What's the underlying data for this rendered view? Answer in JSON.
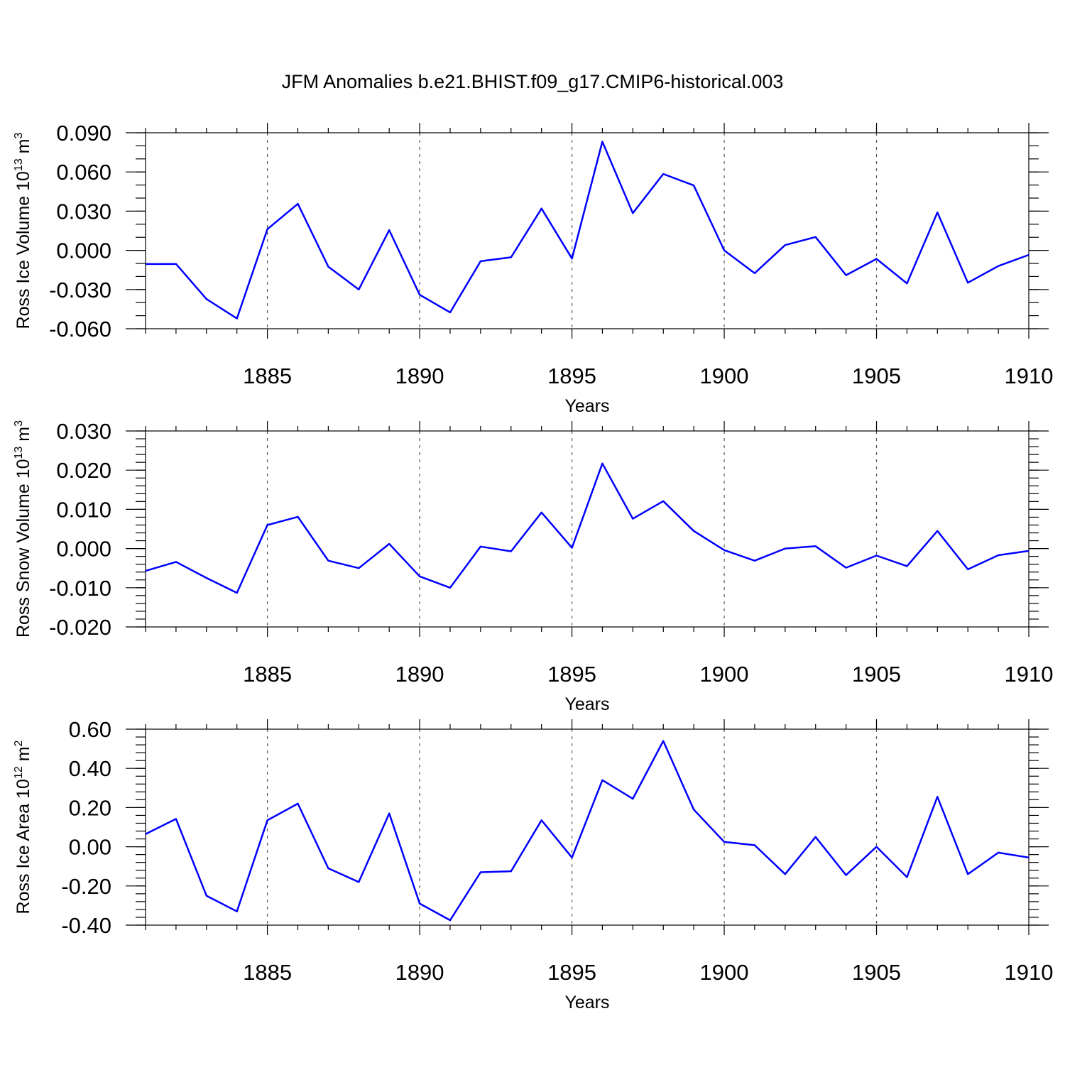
{
  "title": "JFM Anomalies b.e21.BHIST.f09_g17.CMIP6-historical.003",
  "colors": {
    "series": "#0000ff",
    "axis": "#000000",
    "grid": "#555555"
  },
  "chart_data": [
    {
      "type": "line",
      "id": "ice-volume",
      "ylabel_main": "Ross Ice Volume 10",
      "ylabel_exp": "13",
      "ylabel_unit": "m",
      "ylabel_unit_exp": "3",
      "xlabel": "Years",
      "xlim": [
        1881,
        1910
      ],
      "ylim": [
        -0.06,
        0.09
      ],
      "yticks": [
        -0.06,
        -0.03,
        0.0,
        0.03,
        0.06,
        0.09
      ],
      "yticklabels": [
        "-0.060",
        "-0.030",
        "0.000",
        "0.030",
        "0.060",
        "0.090"
      ],
      "yminor": 0.01,
      "xticks": [
        1885,
        1890,
        1895,
        1900,
        1905,
        1910
      ],
      "xticklabels": [
        "1885",
        "1890",
        "1895",
        "1900",
        "1905",
        "1910"
      ],
      "grid_x": [
        1885,
        1890,
        1895,
        1900,
        1905
      ],
      "x": [
        1881,
        1882,
        1883,
        1884,
        1885,
        1886,
        1887,
        1888,
        1889,
        1890,
        1891,
        1892,
        1893,
        1894,
        1895,
        1896,
        1897,
        1898,
        1899,
        1900,
        1901,
        1902,
        1903,
        1904,
        1905,
        1906,
        1907,
        1908,
        1909,
        1910
      ],
      "values": [
        -0.0105,
        -0.0104,
        -0.0373,
        -0.0522,
        0.0162,
        0.0356,
        -0.0125,
        -0.03,
        0.0155,
        -0.034,
        -0.0475,
        -0.0083,
        -0.0053,
        0.032,
        -0.0063,
        0.0832,
        0.0285,
        0.0585,
        0.0497,
        0.0,
        -0.0175,
        0.004,
        0.0102,
        -0.019,
        -0.0065,
        -0.0253,
        0.029,
        -0.0248,
        -0.012,
        -0.0035
      ]
    },
    {
      "type": "line",
      "id": "snow-volume",
      "ylabel_main": "Ross Snow Volume 10",
      "ylabel_exp": "13",
      "ylabel_unit": "m",
      "ylabel_unit_exp": "3",
      "xlabel": "Years",
      "xlim": [
        1881,
        1910
      ],
      "ylim": [
        -0.02,
        0.03
      ],
      "yticks": [
        -0.02,
        -0.01,
        0.0,
        0.01,
        0.02,
        0.03
      ],
      "yticklabels": [
        "-0.020",
        "-0.010",
        "0.000",
        "0.010",
        "0.020",
        "0.030"
      ],
      "yminor": 0.002,
      "xticks": [
        1885,
        1890,
        1895,
        1900,
        1905,
        1910
      ],
      "xticklabels": [
        "1885",
        "1890",
        "1895",
        "1900",
        "1905",
        "1910"
      ],
      "grid_x": [
        1885,
        1890,
        1895,
        1900,
        1905
      ],
      "x": [
        1881,
        1882,
        1883,
        1884,
        1885,
        1886,
        1887,
        1888,
        1889,
        1890,
        1891,
        1892,
        1893,
        1894,
        1895,
        1896,
        1897,
        1898,
        1899,
        1900,
        1901,
        1902,
        1903,
        1904,
        1905,
        1906,
        1907,
        1908,
        1909,
        1910
      ],
      "values": [
        -0.0057,
        -0.0034,
        -0.0075,
        -0.0113,
        0.006,
        0.0081,
        -0.0031,
        -0.005,
        0.0012,
        -0.0071,
        -0.01,
        0.0005,
        -0.0007,
        0.0092,
        0.0002,
        0.0217,
        0.0076,
        0.0121,
        0.0045,
        -0.0004,
        -0.0031,
        0.0,
        0.0006,
        -0.0049,
        -0.0018,
        -0.0045,
        0.0045,
        -0.0053,
        -0.0017,
        -0.0006
      ]
    },
    {
      "type": "line",
      "id": "ice-area",
      "ylabel_main": "Ross Ice Area 10",
      "ylabel_exp": "12",
      "ylabel_unit": "m",
      "ylabel_unit_exp": "2",
      "xlabel": "Years",
      "xlim": [
        1881,
        1910
      ],
      "ylim": [
        -0.4,
        0.6
      ],
      "yticks": [
        -0.4,
        -0.2,
        0.0,
        0.2,
        0.4,
        0.6
      ],
      "yticklabels": [
        "-0.40",
        "-0.20",
        "0.00",
        "0.20",
        "0.40",
        "0.60"
      ],
      "yminor": 0.04,
      "xticks": [
        1885,
        1890,
        1895,
        1900,
        1905,
        1910
      ],
      "xticklabels": [
        "1885",
        "1890",
        "1895",
        "1900",
        "1905",
        "1910"
      ],
      "grid_x": [
        1885,
        1890,
        1895,
        1900,
        1905
      ],
      "x": [
        1881,
        1882,
        1883,
        1884,
        1885,
        1886,
        1887,
        1888,
        1889,
        1890,
        1891,
        1892,
        1893,
        1894,
        1895,
        1896,
        1897,
        1898,
        1899,
        1900,
        1901,
        1902,
        1903,
        1904,
        1905,
        1906,
        1907,
        1908,
        1909,
        1910
      ],
      "values": [
        0.065,
        0.142,
        -0.25,
        -0.33,
        0.135,
        0.22,
        -0.11,
        -0.18,
        0.17,
        -0.29,
        -0.375,
        -0.13,
        -0.125,
        0.135,
        -0.055,
        0.34,
        0.245,
        0.54,
        0.19,
        0.025,
        0.008,
        -0.14,
        0.05,
        -0.145,
        0.0,
        -0.155,
        0.255,
        -0.14,
        -0.03,
        -0.055
      ]
    }
  ]
}
